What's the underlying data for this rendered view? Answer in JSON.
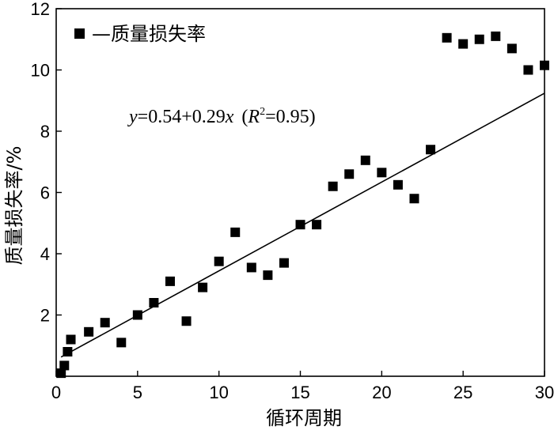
{
  "chart_data": {
    "type": "scatter",
    "xlabel": "循环周期",
    "ylabel": "质量损失率/%",
    "xlim": [
      0,
      30
    ],
    "ylim": [
      0,
      12
    ],
    "x_ticks": [
      0,
      5,
      10,
      15,
      20,
      25,
      30
    ],
    "y_ticks": [
      2,
      4,
      6,
      8,
      10,
      12
    ],
    "x_tick_labels": [
      "0",
      "5",
      "10",
      "15",
      "20",
      "25",
      "30"
    ],
    "y_tick_labels": [
      "2",
      "4",
      "6",
      "8",
      "10",
      "12"
    ],
    "grid": false,
    "legend": {
      "position": "top-left",
      "label": "—质量损失率"
    },
    "series": [
      {
        "name": "—质量损失率",
        "marker": "square",
        "color": "#000000",
        "points": [
          [
            0.3,
            0.1
          ],
          [
            0.5,
            0.35
          ],
          [
            0.7,
            0.8
          ],
          [
            0.9,
            1.2
          ],
          [
            2,
            1.45
          ],
          [
            3,
            1.75
          ],
          [
            4,
            1.1
          ],
          [
            5,
            2.0
          ],
          [
            6,
            2.4
          ],
          [
            7,
            3.1
          ],
          [
            8,
            1.8
          ],
          [
            9,
            2.9
          ],
          [
            10,
            3.75
          ],
          [
            11,
            4.7
          ],
          [
            12,
            3.55
          ],
          [
            13,
            3.3
          ],
          [
            14,
            3.7
          ],
          [
            15,
            4.95
          ],
          [
            16,
            4.95
          ],
          [
            17,
            6.2
          ],
          [
            18,
            6.6
          ],
          [
            19,
            7.05
          ],
          [
            20,
            6.65
          ],
          [
            21,
            6.25
          ],
          [
            22,
            5.8
          ],
          [
            23,
            7.4
          ],
          [
            24,
            11.05
          ],
          [
            25,
            10.85
          ],
          [
            26,
            11.0
          ],
          [
            27,
            11.1
          ],
          [
            28,
            10.7
          ],
          [
            29,
            10.0
          ],
          [
            30,
            10.15
          ]
        ]
      }
    ],
    "fit_line": {
      "intercept": 0.54,
      "slope": 0.29,
      "x_range": [
        0.3,
        30
      ],
      "equation": {
        "y_var": "y",
        "rhs": "=0.54+0.29",
        "x_var": "x",
        "open": "(",
        "r_var": "R",
        "r_exp": "2",
        "r_rhs": "=0.95)"
      }
    }
  }
}
